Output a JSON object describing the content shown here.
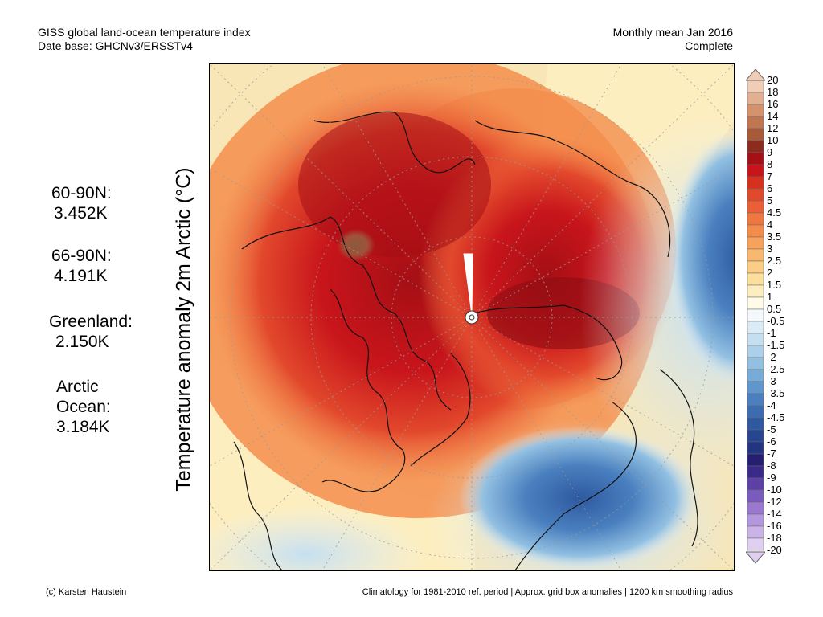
{
  "header": {
    "title": "GISS global land-ocean temperature index",
    "database": "Date base: GHCNv3/ERSSTv4",
    "period": "Monthly mean Jan 2016",
    "status": "Complete"
  },
  "axis_label": "Temperature anomaly 2m Arctic (°C)",
  "stats": [
    {
      "region": "60-90N:",
      "value": "3.452K"
    },
    {
      "region": "66-90N:",
      "value": "4.191K"
    },
    {
      "region": "Greenland:",
      "value": "2.150K"
    },
    {
      "region": "Arctic Ocean:",
      "region_lines": [
        "Arctic",
        "Ocean:"
      ],
      "value": "3.184K"
    }
  ],
  "legend": {
    "labels": [
      "20",
      "18",
      "16",
      "14",
      "12",
      "10",
      "9",
      "8",
      "7",
      "6",
      "5",
      "4.5",
      "4",
      "3.5",
      "3",
      "2.5",
      "2",
      "1.5",
      "1",
      "0.5",
      "-0.5",
      "-1",
      "-1.5",
      "-2",
      "-2.5",
      "-3",
      "-3.5",
      "-4",
      "-4.5",
      "-5",
      "-6",
      "-7",
      "-8",
      "-9",
      "-10",
      "-12",
      "-14",
      "-16",
      "-18",
      "-20"
    ],
    "colors": [
      "#f2cdb6",
      "#e3af91",
      "#d4926d",
      "#c07650",
      "#a65a37",
      "#8c2c1c",
      "#a50f15",
      "#c8151b",
      "#d7301f",
      "#e2482c",
      "#ea5f36",
      "#f07840",
      "#f48d4c",
      "#f7a25c",
      "#f9b86f",
      "#fbcd85",
      "#fcdf9c",
      "#fdeec0",
      "#fffbe8",
      "#f3f8fc",
      "#dcecf7",
      "#c5dff1",
      "#acd0ea",
      "#92c0e2",
      "#78acd8",
      "#5f96cc",
      "#4a80bf",
      "#3b6cb0",
      "#2e59a0",
      "#264690",
      "#223580",
      "#251f72",
      "#3a2a8a",
      "#5d40a6",
      "#7b5abd",
      "#9a78cf",
      "#b597dd",
      "#cbb3e8",
      "#dfd0f1"
    ],
    "top_color": "#f2cdb6",
    "bottom_color": "#dfd0f1"
  },
  "footer": {
    "credit": "(c) Karsten Haustein",
    "note": "Climatology for 1981-2010 ref. period | Approx. grid box anomalies | 1200 km smoothing radius"
  }
}
